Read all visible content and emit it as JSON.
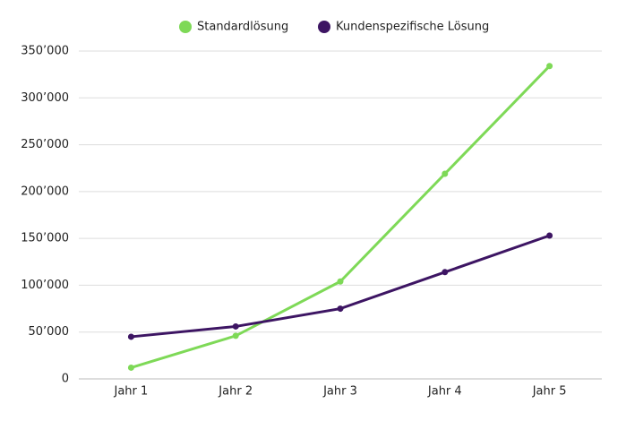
{
  "chart_data": {
    "type": "line",
    "categories": [
      "Jahr 1",
      "Jahr 2",
      "Jahr 3",
      "Jahr 4",
      "Jahr 5"
    ],
    "series": [
      {
        "name": "Standardlösung",
        "color": "#7ed957",
        "values": [
          12000,
          46000,
          104000,
          219000,
          334000
        ]
      },
      {
        "name": "Kundenspezifische Lösung",
        "color": "#3d1563",
        "values": [
          45000,
          56000,
          75000,
          114000,
          153000
        ]
      }
    ],
    "ylim": [
      0,
      350000
    ],
    "yticks": [
      0,
      {
        "value": 50000,
        "label": "50’000"
      },
      {
        "value": 100000,
        "label": "100’000"
      },
      {
        "value": 150000,
        "label": "150’000"
      },
      {
        "value": 200000,
        "label": "200’000"
      },
      {
        "value": 250000,
        "label": "250’000"
      },
      {
        "value": 300000,
        "label": "300’000"
      },
      {
        "value": 350000,
        "label": "350’000"
      }
    ],
    "grid": true,
    "legend": "top"
  }
}
